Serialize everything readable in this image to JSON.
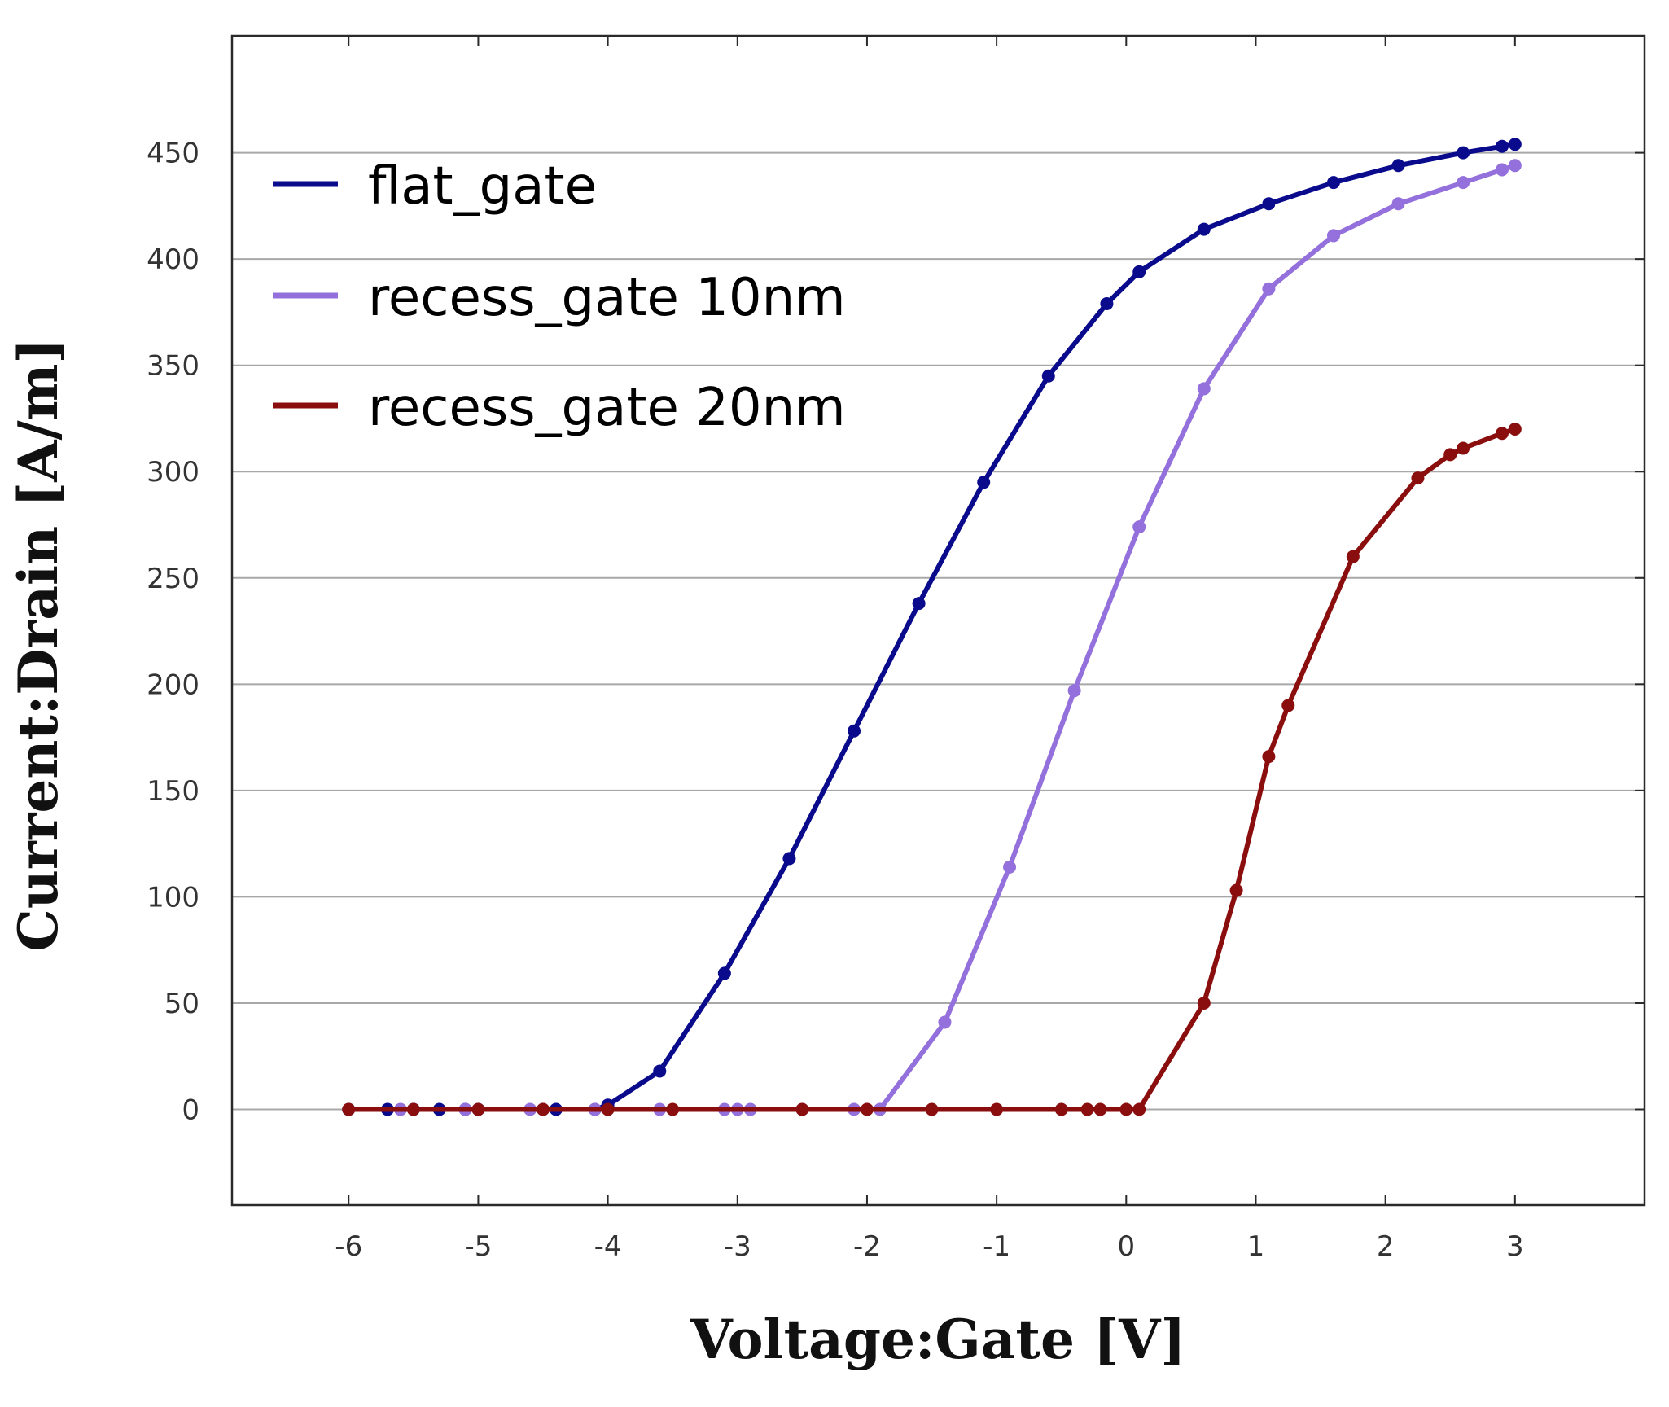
{
  "chart_data": {
    "type": "line",
    "title": "",
    "xlabel": "Voltage:Gate [V]",
    "ylabel": "Current:Drain [A/m]",
    "xlim": [
      -6.9,
      4.0
    ],
    "ylim": [
      -45,
      505
    ],
    "x_ticks": [
      -6,
      -5,
      -4,
      -3,
      -2,
      -1,
      0,
      1,
      2,
      3
    ],
    "x_tick_labels": [
      "-6",
      "-5",
      "-4",
      "-3",
      "-2",
      "-1",
      "0",
      "1",
      "2",
      "3"
    ],
    "y_ticks": [
      0,
      50,
      100,
      150,
      200,
      250,
      300,
      350,
      400,
      450
    ],
    "y_tick_labels": [
      "0",
      "50",
      "100",
      "150",
      "200",
      "250",
      "300",
      "350",
      "400",
      "450"
    ],
    "grid": "horizontal",
    "legend_position": "top-left",
    "series": [
      {
        "name": "flat_gate",
        "color": "#0a0a8c",
        "x": [
          -6.0,
          -5.7,
          -5.5,
          -5.3,
          -5.1,
          -5.0,
          -4.5,
          -4.4,
          -4.1,
          -4.0,
          -3.6,
          -3.1,
          -2.6,
          -2.1,
          -1.6,
          -1.1,
          -0.6,
          -0.15,
          0.1,
          0.6,
          1.1,
          1.6,
          2.1,
          2.6,
          2.9,
          3.0
        ],
        "y": [
          0,
          0,
          0,
          0,
          0,
          0,
          0,
          0,
          0,
          2,
          18,
          64,
          118,
          178,
          238,
          295,
          345,
          379,
          394,
          414,
          426,
          436,
          444,
          450,
          453,
          454
        ]
      },
      {
        "name": "recess_gate 10nm",
        "color": "#9370db",
        "x": [
          -6.0,
          -5.6,
          -5.1,
          -4.6,
          -4.1,
          -3.6,
          -3.1,
          -3.0,
          -2.9,
          -2.5,
          -2.1,
          -1.9,
          -1.4,
          -0.9,
          -0.4,
          0.1,
          0.6,
          1.1,
          1.6,
          2.1,
          2.6,
          2.9,
          3.0
        ],
        "y": [
          0,
          0,
          0,
          0,
          0,
          0,
          0,
          0,
          0,
          0,
          0,
          0,
          41,
          114,
          197,
          274,
          339,
          386,
          411,
          426,
          436,
          442,
          444
        ]
      },
      {
        "name": "recess_gate 20nm",
        "color": "#8b0e0e",
        "x": [
          -6.0,
          -5.5,
          -5.0,
          -4.5,
          -4.0,
          -3.5,
          -2.5,
          -2.0,
          -1.5,
          -1.0,
          -0.5,
          -0.3,
          -0.2,
          0.0,
          0.1,
          0.6,
          0.85,
          1.1,
          1.25,
          1.75,
          2.25,
          2.5,
          2.6,
          2.9,
          3.0
        ],
        "y": [
          0,
          0,
          0,
          0,
          0,
          0,
          0,
          0,
          0,
          0,
          0,
          0,
          0,
          0,
          0,
          50,
          103,
          166,
          190,
          260,
          297,
          308,
          311,
          318,
          320
        ]
      }
    ]
  }
}
